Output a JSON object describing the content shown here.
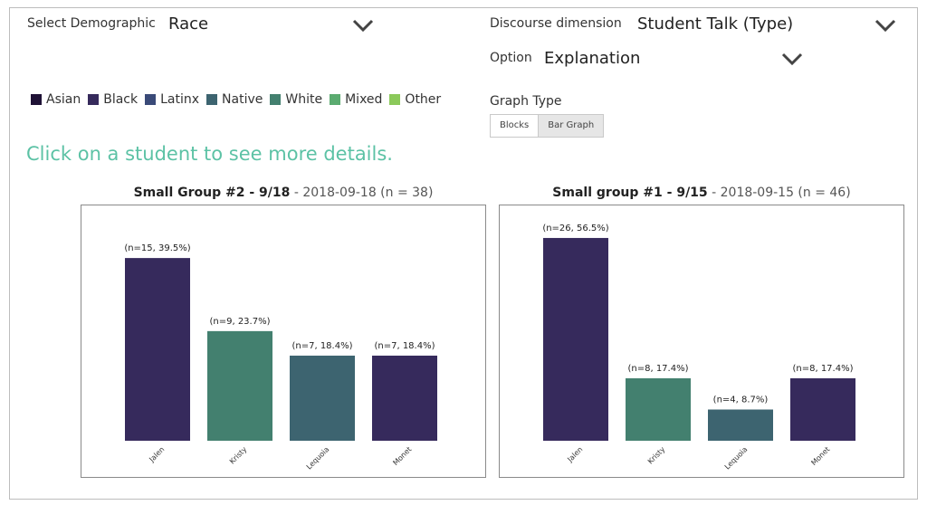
{
  "controls": {
    "demographic_label": "Select Demographic",
    "demographic_value": "Race",
    "discourse_label": "Discourse dimension",
    "discourse_value": "Student Talk (Type)",
    "option_label": "Option",
    "option_value": "Explanation",
    "graph_type_label": "Graph Type",
    "graph_type_options": [
      "Blocks",
      "Bar Graph"
    ],
    "graph_type_selected": "Bar Graph"
  },
  "legend": [
    {
      "label": "Asian",
      "color": "#1f1236"
    },
    {
      "label": "Black",
      "color": "#362a5c"
    },
    {
      "label": "Latinx",
      "color": "#3a4a78"
    },
    {
      "label": "Native",
      "color": "#3d6470"
    },
    {
      "label": "White",
      "color": "#43806f"
    },
    {
      "label": "Mixed",
      "color": "#5bab70"
    },
    {
      "label": "Other",
      "color": "#8bc95a"
    }
  ],
  "hint": "Click on a student to see more details.",
  "chart_data": [
    {
      "type": "bar",
      "title_bold": "Small Group #2 - 9/18",
      "title_rest": " - 2018-09-18 (n = 38)",
      "categories": [
        "Jalen",
        "Kristy",
        "Lequoia",
        "Monet"
      ],
      "values": [
        39.5,
        23.7,
        18.4,
        18.4
      ],
      "counts": [
        15,
        9,
        7,
        7
      ],
      "labels": [
        "(n=15, 39.5%)",
        "(n=9, 23.7%)",
        "(n=7, 18.4%)",
        "(n=7, 18.4%)"
      ],
      "colors": [
        "#362a5c",
        "#43806f",
        "#3d6470",
        "#362a5c"
      ],
      "ylim": [
        0,
        45
      ]
    },
    {
      "type": "bar",
      "title_bold": "Small group #1 - 9/15",
      "title_rest": " - 2018-09-15 (n = 46)",
      "categories": [
        "Jalen",
        "Kristy",
        "Lequoia",
        "Monet"
      ],
      "values": [
        56.5,
        17.4,
        8.7,
        17.4
      ],
      "counts": [
        26,
        8,
        4,
        8
      ],
      "labels": [
        "(n=26, 56.5%)",
        "(n=8, 17.4%)",
        "(n=4, 8.7%)",
        "(n=8, 17.4%)"
      ],
      "colors": [
        "#362a5c",
        "#43806f",
        "#3d6470",
        "#362a5c"
      ],
      "ylim": [
        0,
        58
      ]
    }
  ]
}
